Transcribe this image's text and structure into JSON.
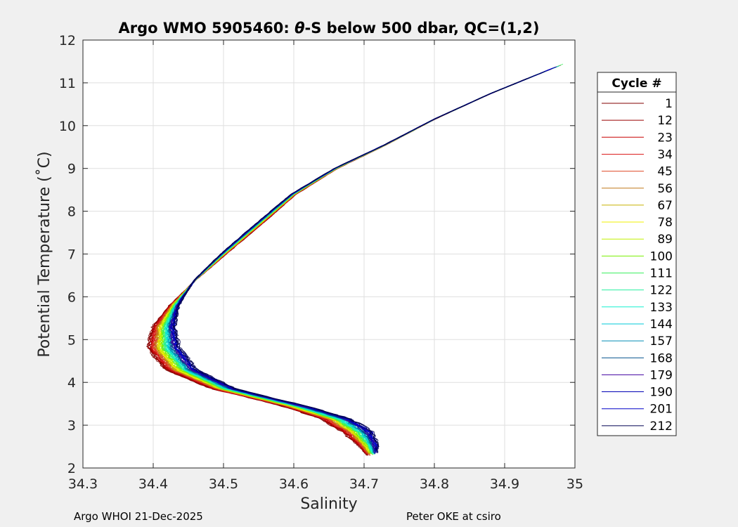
{
  "chart_data": {
    "type": "line",
    "title_prefix": "Argo WMO 5905460: ",
    "title_theta": "θ",
    "title_suffix": "-S below 500 dbar,  QC=(1,2)",
    "xlabel": "Salinity",
    "ylabel": "Potential Temperature (˚C)",
    "xlim": [
      34.3,
      35
    ],
    "ylim": [
      2,
      12
    ],
    "xticks": [
      "34.3",
      "34.4",
      "34.5",
      "34.6",
      "34.7",
      "34.8",
      "34.9",
      "35"
    ],
    "yticks": [
      "2",
      "3",
      "4",
      "5",
      "6",
      "7",
      "8",
      "9",
      "10",
      "11",
      "12"
    ],
    "grid": true,
    "legend_title": "Cycle #",
    "legend_position": "right",
    "series": [
      {
        "name": "1",
        "color": "#800000"
      },
      {
        "name": "12",
        "color": "#9a0000"
      },
      {
        "name": "23",
        "color": "#c80000"
      },
      {
        "name": "34",
        "color": "#dc1e1e"
      },
      {
        "name": "45",
        "color": "#e04a28"
      },
      {
        "name": "56",
        "color": "#c07818"
      },
      {
        "name": "67",
        "color": "#c8b000"
      },
      {
        "name": "78",
        "color": "#f0f000"
      },
      {
        "name": "89",
        "color": "#c0f000"
      },
      {
        "name": "100",
        "color": "#78f000"
      },
      {
        "name": "111",
        "color": "#3cf060"
      },
      {
        "name": "122",
        "color": "#28f0a0"
      },
      {
        "name": "133",
        "color": "#14f0d0"
      },
      {
        "name": "144",
        "color": "#00c8d8"
      },
      {
        "name": "157",
        "color": "#008cb4"
      },
      {
        "name": "168",
        "color": "#00508c"
      },
      {
        "name": "179",
        "color": "#4000a0"
      },
      {
        "name": "190",
        "color": "#0000b4"
      },
      {
        "name": "201",
        "color": "#0000c8"
      },
      {
        "name": "212",
        "color": "#000050"
      }
    ],
    "profile_path": [
      {
        "s": 34.712,
        "t": 2.3
      },
      {
        "s": 34.705,
        "t": 2.55
      },
      {
        "s": 34.69,
        "t": 2.85
      },
      {
        "s": 34.66,
        "t": 3.15
      },
      {
        "s": 34.6,
        "t": 3.45
      },
      {
        "s": 34.5,
        "t": 3.85
      },
      {
        "s": 34.44,
        "t": 4.3
      },
      {
        "s": 34.415,
        "t": 4.8
      },
      {
        "s": 34.415,
        "t": 5.3
      },
      {
        "s": 34.43,
        "t": 5.8
      },
      {
        "s": 34.46,
        "t": 6.4
      },
      {
        "s": 34.5,
        "t": 7.0
      },
      {
        "s": 34.55,
        "t": 7.7
      },
      {
        "s": 34.6,
        "t": 8.4
      },
      {
        "s": 34.66,
        "t": 9.0
      },
      {
        "s": 34.73,
        "t": 9.55
      },
      {
        "s": 34.8,
        "t": 10.15
      },
      {
        "s": 34.88,
        "t": 10.75
      },
      {
        "s": 34.985,
        "t": 11.45
      }
    ]
  },
  "footer": {
    "left": "Argo WHOI 21-Dec-2025",
    "right": "Peter OKE at csiro"
  }
}
